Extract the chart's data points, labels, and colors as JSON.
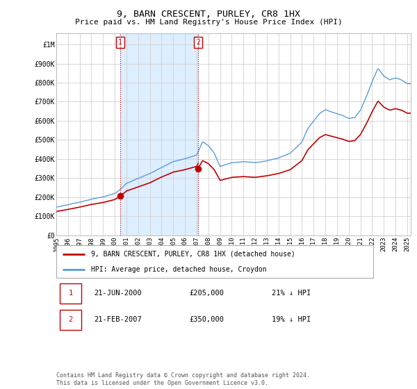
{
  "title": "9, BARN CRESCENT, PURLEY, CR8 1HX",
  "subtitle": "Price paid vs. HM Land Registry's House Price Index (HPI)",
  "ylabel_ticks": [
    "£0",
    "£100K",
    "£200K",
    "£300K",
    "£400K",
    "£500K",
    "£600K",
    "£700K",
    "£800K",
    "£900K",
    "£1M"
  ],
  "ytick_values": [
    0,
    100000,
    200000,
    300000,
    400000,
    500000,
    600000,
    700000,
    800000,
    900000,
    1000000
  ],
  "ylim": [
    0,
    1060000
  ],
  "xlim_start": 1995.0,
  "xlim_end": 2025.3,
  "legend_line1": "9, BARN CRESCENT, PURLEY, CR8 1HX (detached house)",
  "legend_line2": "HPI: Average price, detached house, Croydon",
  "annotation1_label": "1",
  "annotation1_date": "21-JUN-2000",
  "annotation1_price": "£205,000",
  "annotation1_pct": "21% ↓ HPI",
  "annotation2_label": "2",
  "annotation2_date": "21-FEB-2007",
  "annotation2_price": "£350,000",
  "annotation2_pct": "19% ↓ HPI",
  "hpi_color": "#5b9bd5",
  "price_color": "#c00000",
  "annotation_color": "#c00000",
  "shade_color": "#ddeeff",
  "grid_color": "#d0d0d0",
  "footer_text": "Contains HM Land Registry data © Crown copyright and database right 2024.\nThis data is licensed under the Open Government Licence v3.0.",
  "xtick_years": [
    1995,
    1996,
    1997,
    1998,
    1999,
    2000,
    2001,
    2002,
    2003,
    2004,
    2005,
    2006,
    2007,
    2008,
    2009,
    2010,
    2011,
    2012,
    2013,
    2014,
    2015,
    2016,
    2017,
    2018,
    2019,
    2020,
    2021,
    2022,
    2023,
    2024,
    2025
  ],
  "sale1_x": 2000.458,
  "sale1_y": 205000,
  "sale2_x": 2007.125,
  "sale2_y": 350000
}
